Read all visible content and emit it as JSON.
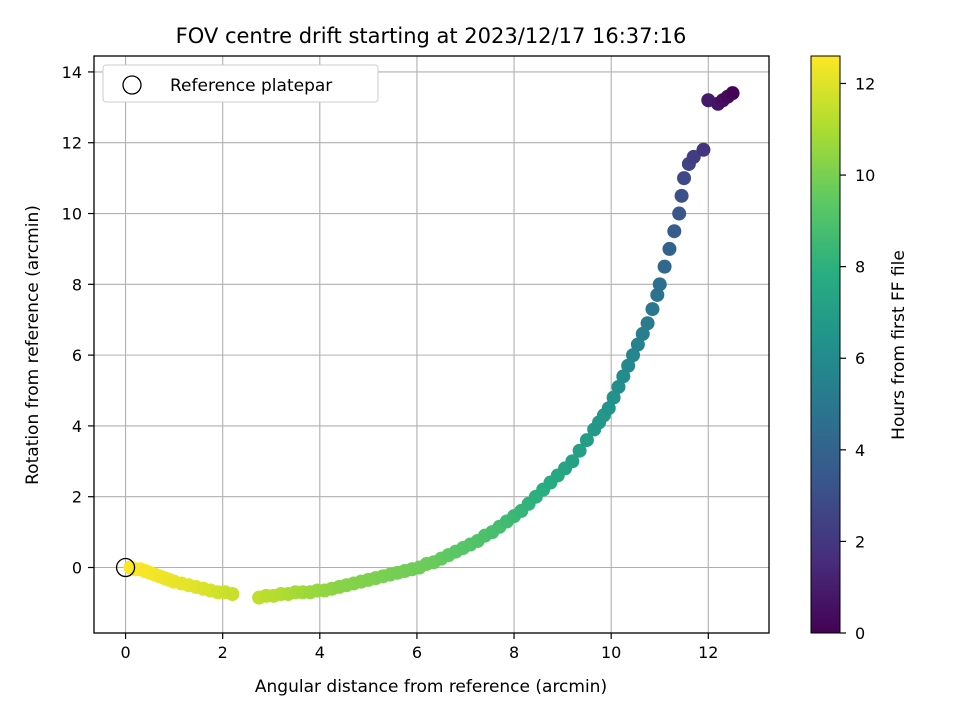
{
  "chart_data": {
    "type": "scatter",
    "title": "FOV centre drift starting at 2023/12/17 16:37:16",
    "xlabel": "Angular distance from reference (arcmin)",
    "ylabel": "Rotation from reference (arcmin)",
    "xlim": [
      -0.65,
      13.25
    ],
    "ylim": [
      -1.85,
      14.45
    ],
    "xticks": [
      "0",
      "2",
      "4",
      "6",
      "8",
      "10",
      "12"
    ],
    "yticks": [
      "0",
      "2",
      "4",
      "6",
      "8",
      "10",
      "12",
      "14"
    ],
    "grid": true,
    "legend": {
      "position": "top-left",
      "entries": [
        "Reference platepar"
      ]
    },
    "reference_point": {
      "x": 0,
      "y": 0
    },
    "colorbar": {
      "label": "Hours from first FF file",
      "range": [
        0,
        12.6
      ],
      "ticks": [
        "0",
        "2",
        "4",
        "6",
        "8",
        "10",
        "12"
      ],
      "colormap": "viridis"
    },
    "series": [
      {
        "x": [
          12.5,
          12.4,
          12.3,
          12.2,
          12.0,
          11.9,
          11.7,
          11.6,
          11.5,
          11.45,
          11.4,
          11.3,
          11.2,
          11.1,
          11.0,
          10.95,
          10.85,
          10.75,
          10.65,
          10.55,
          10.45,
          10.35,
          10.25,
          10.15,
          10.05,
          9.95,
          9.85,
          9.75,
          9.65,
          9.5,
          9.35,
          9.2,
          9.05,
          8.9,
          8.75,
          8.6,
          8.45,
          8.3,
          8.15,
          8.0,
          7.85,
          7.7,
          7.55,
          7.4,
          7.25,
          7.1,
          6.95,
          6.8,
          6.65,
          6.5,
          6.35,
          6.2,
          6.05,
          5.9,
          5.75,
          5.6,
          5.45,
          5.3,
          5.15,
          5.0,
          4.85,
          4.7,
          4.55,
          4.4,
          4.25,
          4.1,
          3.95,
          3.8,
          3.65,
          3.5,
          3.35,
          3.2,
          3.05,
          2.9,
          2.75,
          2.2,
          2.05,
          1.9,
          1.75,
          1.6,
          1.45,
          1.3,
          1.15,
          1.0,
          0.9,
          0.8,
          0.7,
          0.6,
          0.5,
          0.4,
          0.3,
          0.2,
          0.1
        ],
        "y": [
          13.4,
          13.3,
          13.2,
          13.1,
          13.2,
          11.8,
          11.6,
          11.4,
          11.0,
          10.5,
          10.0,
          9.5,
          9.0,
          8.5,
          8.0,
          7.7,
          7.3,
          6.9,
          6.6,
          6.3,
          6.0,
          5.7,
          5.4,
          5.1,
          4.8,
          4.5,
          4.3,
          4.1,
          3.9,
          3.6,
          3.3,
          3.0,
          2.8,
          2.6,
          2.4,
          2.2,
          2.0,
          1.8,
          1.6,
          1.45,
          1.3,
          1.15,
          1.0,
          0.9,
          0.75,
          0.65,
          0.55,
          0.45,
          0.35,
          0.25,
          0.15,
          0.1,
          0.0,
          -0.05,
          -0.1,
          -0.15,
          -0.2,
          -0.25,
          -0.3,
          -0.35,
          -0.4,
          -0.45,
          -0.5,
          -0.55,
          -0.6,
          -0.65,
          -0.65,
          -0.7,
          -0.7,
          -0.7,
          -0.75,
          -0.75,
          -0.8,
          -0.8,
          -0.85,
          -0.75,
          -0.7,
          -0.7,
          -0.65,
          -0.6,
          -0.55,
          -0.5,
          -0.45,
          -0.4,
          -0.35,
          -0.3,
          -0.25,
          -0.2,
          -0.15,
          -0.1,
          -0.05,
          -0.05,
          0.0
        ],
        "c": [
          0.1,
          0.3,
          0.5,
          0.7,
          0.9,
          1.9,
          2.2,
          2.5,
          2.8,
          3.1,
          3.4,
          3.7,
          4.0,
          4.3,
          4.6,
          4.8,
          5.0,
          5.2,
          5.4,
          5.6,
          5.75,
          5.9,
          6.05,
          6.2,
          6.35,
          6.5,
          6.6,
          6.7,
          6.8,
          6.95,
          7.1,
          7.25,
          7.4,
          7.55,
          7.7,
          7.85,
          8.0,
          8.15,
          8.3,
          8.45,
          8.6,
          8.75,
          8.85,
          8.95,
          9.05,
          9.15,
          9.25,
          9.35,
          9.45,
          9.55,
          9.65,
          9.7,
          9.75,
          9.8,
          9.85,
          9.9,
          9.95,
          10.0,
          10.05,
          10.1,
          10.15,
          10.2,
          10.25,
          10.3,
          10.4,
          10.5,
          10.6,
          10.7,
          10.8,
          10.9,
          11.0,
          11.1,
          11.2,
          11.3,
          11.4,
          11.55,
          11.65,
          11.75,
          11.85,
          11.95,
          12.05,
          12.1,
          12.15,
          12.2,
          12.25,
          12.3,
          12.35,
          12.4,
          12.45,
          12.5,
          12.55,
          12.58,
          12.6
        ]
      }
    ]
  }
}
